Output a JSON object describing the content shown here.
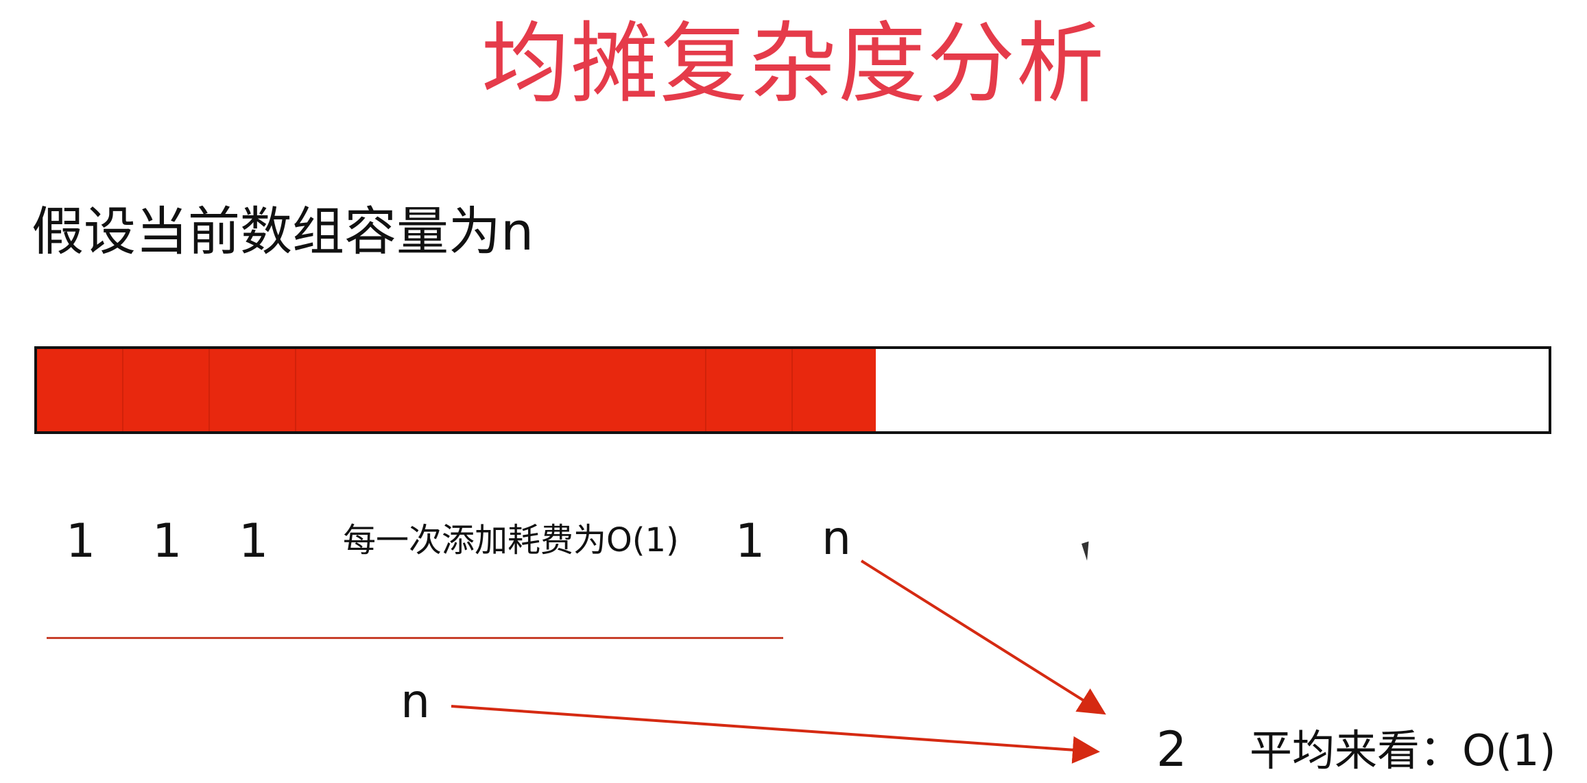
{
  "title": "均摊复杂度分析",
  "assumption": "假设当前数组容量为n",
  "array": {
    "fill_fraction": 0.555,
    "fill_color": "#e8280e",
    "border_color": "#111111"
  },
  "costs": {
    "cost_1": "1",
    "cost_2": "1",
    "cost_3": "1",
    "note": "每一次添加耗费为O(1)",
    "cost_4": "1",
    "cost_n": "n"
  },
  "summary": {
    "sum_n": "n",
    "result_value": "2",
    "result_text": "平均来看：O(1)"
  },
  "colors": {
    "title": "#e53b4a",
    "arrow": "#d52a12",
    "sum_line": "#c8412c"
  },
  "icons": {
    "cursor": "mouse-pointer-icon"
  }
}
